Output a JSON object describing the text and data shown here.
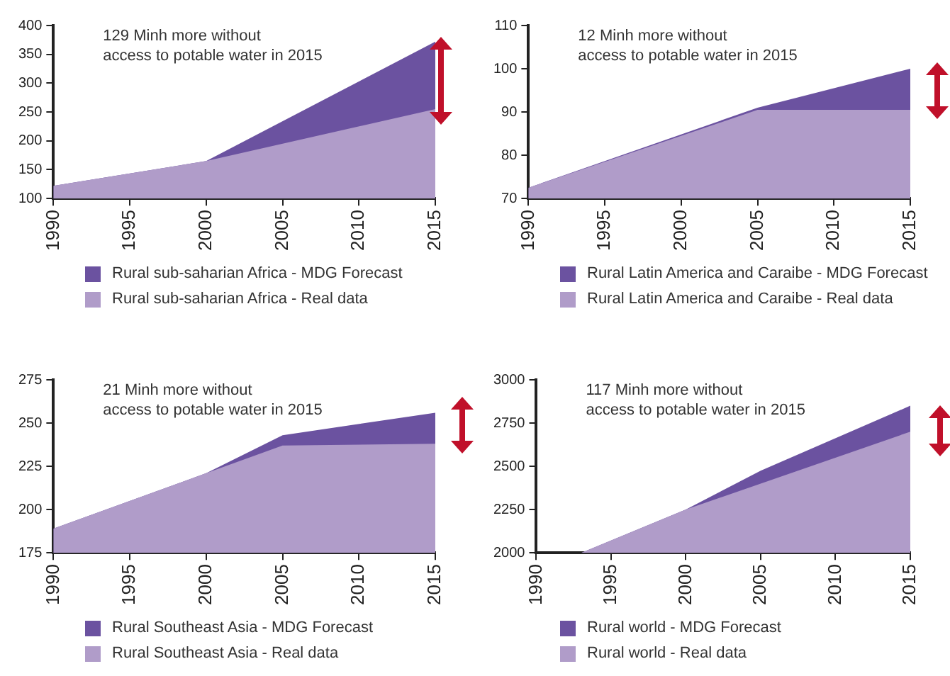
{
  "chart_data": [
    {
      "type": "area",
      "annotations": [
        "129 Minh more without\naccess to potable water in 2015"
      ],
      "xlim": [
        1990,
        2015
      ],
      "xticks": [
        1990,
        1995,
        2000,
        2005,
        2010,
        2015
      ],
      "ylim": [
        100,
        400
      ],
      "yticks": [
        100,
        150,
        200,
        250,
        300,
        350,
        400
      ],
      "grid": false,
      "legend": "bottom",
      "series": [
        {
          "name": "Rural sub-saharian Africa - MDG Forecast",
          "color": "#6b52a0",
          "x": [
            1990,
            2000,
            2015
          ],
          "values": [
            122,
            165,
            372
          ]
        },
        {
          "name": "Rural sub-saharian Africa - Real data",
          "color": "#b09cc9",
          "x": [
            1990,
            2000,
            2015
          ],
          "values": [
            122,
            165,
            255
          ]
        }
      ]
    },
    {
      "type": "area",
      "annotations": [
        "12 Minh more without\naccess to potable water in 2015"
      ],
      "xlim": [
        1990,
        2015
      ],
      "xticks": [
        1990,
        1995,
        2000,
        2005,
        2010,
        2015
      ],
      "ylim": [
        70,
        110
      ],
      "yticks": [
        70,
        80,
        90,
        100,
        110
      ],
      "grid": false,
      "legend": "bottom",
      "series": [
        {
          "name": "Rural Latin America and Caraibe - MDG Forecast",
          "color": "#6b52a0",
          "x": [
            1990,
            2005,
            2015
          ],
          "values": [
            72.5,
            91,
            100
          ]
        },
        {
          "name": "Rural Latin America and Caraibe - Real data",
          "color": "#b09cc9",
          "x": [
            1990,
            2005,
            2015
          ],
          "values": [
            72.5,
            90.5,
            90.5
          ]
        }
      ]
    },
    {
      "type": "area",
      "annotations": [
        "21 Minh more without\naccess to potable water in 2015"
      ],
      "xlim": [
        1990,
        2015
      ],
      "xticks": [
        1990,
        1995,
        2000,
        2005,
        2010,
        2015
      ],
      "ylim": [
        175,
        275
      ],
      "yticks": [
        175,
        200,
        225,
        250,
        275
      ],
      "grid": false,
      "legend": "bottom",
      "series": [
        {
          "name": "Rural Southeast Asia - MDG Forecast",
          "color": "#6b52a0",
          "x": [
            1990,
            2000,
            2005,
            2015
          ],
          "values": [
            189,
            221,
            243,
            256
          ]
        },
        {
          "name": "Rural Southeast Asia - Real data",
          "color": "#b09cc9",
          "x": [
            1990,
            2000,
            2005,
            2015
          ],
          "values": [
            189,
            221,
            237,
            238
          ]
        }
      ]
    },
    {
      "type": "area",
      "annotations": [
        "117 Minh more without\naccess to potable water in 2015"
      ],
      "xlim": [
        1990,
        2015
      ],
      "xticks": [
        1990,
        1995,
        2000,
        2005,
        2010,
        2015
      ],
      "ylim": [
        2000,
        3000
      ],
      "yticks": [
        2000,
        2250,
        2500,
        2750,
        3000
      ],
      "grid": false,
      "legend": "bottom",
      "series": [
        {
          "name": "Rural world - MDG Forecast",
          "color": "#6b52a0",
          "x": [
            1993,
            2000,
            2005,
            2015
          ],
          "values": [
            2000,
            2250,
            2475,
            2850
          ]
        },
        {
          "name": "Rural world - Real data",
          "color": "#b09cc9",
          "x": [
            1993,
            2000,
            2005,
            2015
          ],
          "values": [
            2000,
            2250,
            2400,
            2700
          ]
        }
      ]
    }
  ]
}
